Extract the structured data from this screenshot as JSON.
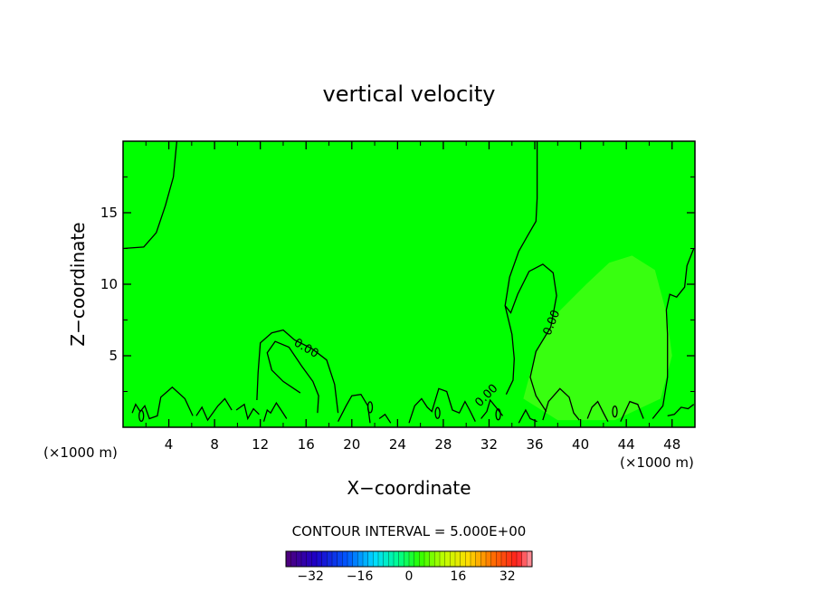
{
  "chart_data": {
    "type": "heatmap",
    "title": "vertical velocity",
    "xlabel": "X−coordinate",
    "ylabel": "Z−coordinate",
    "x_unit_left": "(×1000 m)",
    "x_unit_right": "(×1000 m)",
    "xlim": [
      0,
      50
    ],
    "ylim": [
      0,
      20
    ],
    "x_ticks": [
      4,
      8,
      12,
      16,
      20,
      24,
      28,
      32,
      36,
      40,
      44,
      48
    ],
    "y_ticks": [
      5,
      10,
      15
    ],
    "contour_interval_label": "CONTOUR INTERVAL = 5.000E+00",
    "contour_labels": [
      {
        "text": "0.00",
        "x": 16,
        "y": 5.5
      },
      {
        "text": "0.00",
        "x": 37.5,
        "y": 7.3
      },
      {
        "text": "0.00",
        "x": 31.8,
        "y": 2.2
      }
    ],
    "colorbar": {
      "min": -40,
      "max": 40,
      "ticks": [
        "−32",
        "−16",
        "0",
        "16",
        "32"
      ],
      "tick_values": [
        -32,
        -16,
        0,
        16,
        32
      ]
    },
    "colors": {
      "field": "#00ff00",
      "positive_patch": "#7dff24"
    }
  }
}
